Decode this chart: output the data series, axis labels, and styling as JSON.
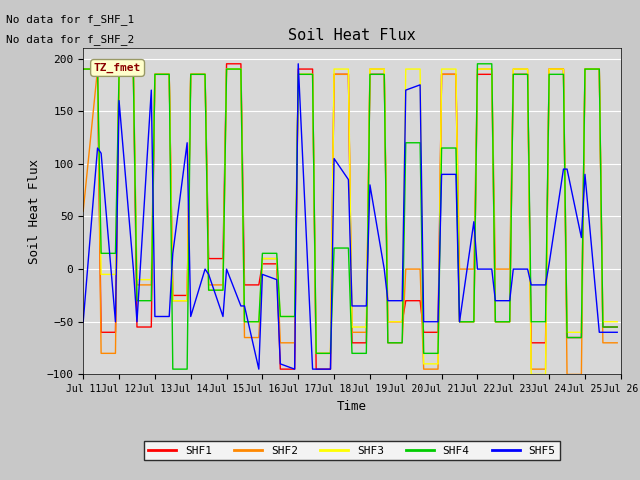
{
  "title": "Soil Heat Flux",
  "xlabel": "Time",
  "ylabel": "Soil Heat Flux",
  "ylim": [
    -100,
    210
  ],
  "yticks": [
    -100,
    -50,
    0,
    50,
    100,
    150,
    200
  ],
  "text_lines": [
    "No data for f_SHF_1",
    "No data for f_SHF_2"
  ],
  "legend_label": "TZ_fmet",
  "series_labels": [
    "SHF1",
    "SHF2",
    "SHF3",
    "SHF4",
    "SHF5"
  ],
  "series_colors": [
    "#ff0000",
    "#ff8800",
    "#ffff00",
    "#00cc00",
    "#0000ff"
  ],
  "fig_facecolor": "#c8c8c8",
  "plot_facecolor": "#d8d8d8",
  "shf1_x": [
    11.0,
    11.4,
    11.5,
    11.9,
    12.0,
    12.4,
    12.5,
    12.9,
    13.0,
    13.4,
    13.5,
    13.9,
    14.0,
    14.4,
    14.5,
    14.9,
    15.0,
    15.4,
    15.5,
    15.9,
    16.0,
    16.4,
    16.5,
    16.9,
    17.0,
    17.4,
    17.5,
    17.9,
    18.0,
    18.4,
    18.5,
    18.9,
    19.0,
    19.4,
    19.5,
    19.9,
    20.0,
    20.4,
    20.5,
    20.9,
    21.0,
    21.4,
    21.5,
    21.9,
    22.0,
    22.4,
    22.5,
    22.9,
    23.0,
    23.4,
    23.5,
    23.9,
    24.0,
    24.4,
    24.5,
    24.9,
    25.0,
    25.4,
    25.5,
    25.9
  ],
  "shf1_y": [
    190,
    190,
    -60,
    -60,
    185,
    185,
    -55,
    -55,
    185,
    185,
    -25,
    -25,
    185,
    185,
    10,
    10,
    195,
    195,
    -15,
    -15,
    5,
    5,
    -95,
    -95,
    190,
    190,
    -95,
    -95,
    185,
    185,
    -70,
    -70,
    185,
    185,
    -50,
    -50,
    -30,
    -30,
    -60,
    -60,
    185,
    185,
    -50,
    -50,
    185,
    185,
    -50,
    -50,
    185,
    185,
    -70,
    -70,
    190,
    190,
    -65,
    -65,
    190,
    190,
    -55,
    -55
  ],
  "shf2_x": [
    11.0,
    11.4,
    11.5,
    11.9,
    12.0,
    12.4,
    12.5,
    12.9,
    13.0,
    13.4,
    13.5,
    13.9,
    14.0,
    14.4,
    14.5,
    14.9,
    15.0,
    15.4,
    15.5,
    15.9,
    16.0,
    16.4,
    16.5,
    16.9,
    17.0,
    17.4,
    17.5,
    17.9,
    18.0,
    18.4,
    18.5,
    18.9,
    19.0,
    19.4,
    19.5,
    19.9,
    20.0,
    20.4,
    20.5,
    20.9,
    21.0,
    21.4,
    21.5,
    21.9,
    22.0,
    22.4,
    22.5,
    22.9,
    23.0,
    23.4,
    23.5,
    23.9,
    24.0,
    24.4,
    24.5,
    24.9,
    25.0,
    25.4,
    25.5,
    25.9
  ],
  "shf2_y": [
    55,
    190,
    -80,
    -80,
    190,
    190,
    -15,
    -15,
    185,
    185,
    -30,
    -30,
    185,
    185,
    -15,
    -15,
    190,
    190,
    -65,
    -65,
    10,
    10,
    -70,
    -70,
    185,
    185,
    -80,
    -80,
    185,
    185,
    -60,
    -60,
    190,
    190,
    -70,
    -70,
    0,
    0,
    -95,
    -95,
    185,
    185,
    0,
    0,
    190,
    190,
    0,
    0,
    190,
    190,
    -95,
    -95,
    190,
    190,
    -100,
    -100,
    190,
    190,
    -70,
    -70
  ],
  "shf3_x": [
    11.0,
    11.4,
    11.5,
    11.9,
    12.0,
    12.4,
    12.5,
    12.9,
    13.0,
    13.4,
    13.5,
    13.9,
    14.0,
    14.4,
    14.5,
    14.9,
    15.0,
    15.4,
    15.5,
    15.9,
    16.0,
    16.4,
    16.5,
    16.9,
    17.0,
    17.4,
    17.5,
    17.9,
    18.0,
    18.4,
    18.5,
    18.9,
    19.0,
    19.4,
    19.5,
    19.9,
    20.0,
    20.4,
    20.5,
    20.9,
    21.0,
    21.4,
    21.5,
    21.9,
    22.0,
    22.4,
    22.5,
    22.9,
    23.0,
    23.4,
    23.5,
    23.9,
    24.0,
    24.4,
    24.5,
    24.9,
    25.0,
    25.4,
    25.5,
    25.9
  ],
  "shf3_y": [
    190,
    190,
    -5,
    -5,
    185,
    185,
    -10,
    -10,
    185,
    185,
    -30,
    -30,
    185,
    185,
    -20,
    -20,
    190,
    190,
    -50,
    -50,
    10,
    10,
    -45,
    -45,
    185,
    185,
    -80,
    -80,
    190,
    190,
    -55,
    -55,
    190,
    190,
    -50,
    -50,
    190,
    190,
    -90,
    -90,
    190,
    190,
    -50,
    -50,
    190,
    190,
    -50,
    -50,
    190,
    190,
    -100,
    -100,
    190,
    190,
    -60,
    -60,
    190,
    190,
    -50,
    -50
  ],
  "shf4_x": [
    11.0,
    11.4,
    11.5,
    11.9,
    12.0,
    12.4,
    12.5,
    12.9,
    13.0,
    13.4,
    13.5,
    13.9,
    14.0,
    14.4,
    14.5,
    14.9,
    15.0,
    15.4,
    15.5,
    15.9,
    16.0,
    16.4,
    16.5,
    16.9,
    17.0,
    17.4,
    17.5,
    17.9,
    18.0,
    18.4,
    18.5,
    18.9,
    19.0,
    19.4,
    19.5,
    19.9,
    20.0,
    20.4,
    20.5,
    20.9,
    21.0,
    21.4,
    21.5,
    21.9,
    22.0,
    22.4,
    22.5,
    22.9,
    23.0,
    23.4,
    23.5,
    23.9,
    24.0,
    24.4,
    24.5,
    24.9,
    25.0,
    25.4,
    25.5,
    25.9
  ],
  "shf4_y": [
    190,
    190,
    15,
    15,
    185,
    185,
    -30,
    -30,
    185,
    185,
    -95,
    -95,
    185,
    185,
    -20,
    -20,
    190,
    190,
    -50,
    -50,
    15,
    15,
    -45,
    -45,
    185,
    185,
    -80,
    -80,
    20,
    20,
    -80,
    -80,
    185,
    185,
    -70,
    -70,
    120,
    120,
    -80,
    -80,
    115,
    115,
    -50,
    -50,
    195,
    195,
    -50,
    -50,
    185,
    185,
    -50,
    -50,
    185,
    185,
    -65,
    -65,
    190,
    190,
    -55,
    -55
  ],
  "shf5_x": [
    11.0,
    11.4,
    11.5,
    11.9,
    12.0,
    12.4,
    12.5,
    12.9,
    13.0,
    13.4,
    13.5,
    13.9,
    14.0,
    14.4,
    14.5,
    14.9,
    15.0,
    15.4,
    15.5,
    15.9,
    16.0,
    16.4,
    16.5,
    16.9,
    17.0,
    17.4,
    17.5,
    17.9,
    18.0,
    18.4,
    18.5,
    18.9,
    19.0,
    19.4,
    19.5,
    19.9,
    20.0,
    20.4,
    20.5,
    20.9,
    21.0,
    21.4,
    21.5,
    21.9,
    22.0,
    22.4,
    22.5,
    22.9,
    23.0,
    23.4,
    23.5,
    23.9,
    24.0,
    24.4,
    24.5,
    24.9,
    25.0,
    25.4,
    25.5,
    25.9
  ],
  "shf5_y": [
    -50,
    115,
    110,
    -50,
    160,
    0,
    -50,
    170,
    -45,
    -45,
    15,
    120,
    -45,
    0,
    -5,
    -45,
    0,
    -35,
    -35,
    -95,
    -5,
    -10,
    -90,
    -95,
    195,
    -95,
    -95,
    -95,
    105,
    85,
    -35,
    -35,
    80,
    0,
    -30,
    -30,
    170,
    175,
    -50,
    -50,
    90,
    90,
    -50,
    45,
    0,
    0,
    -30,
    -30,
    0,
    0,
    -15,
    -15,
    5,
    95,
    95,
    30,
    90,
    -60,
    -60,
    -60
  ]
}
